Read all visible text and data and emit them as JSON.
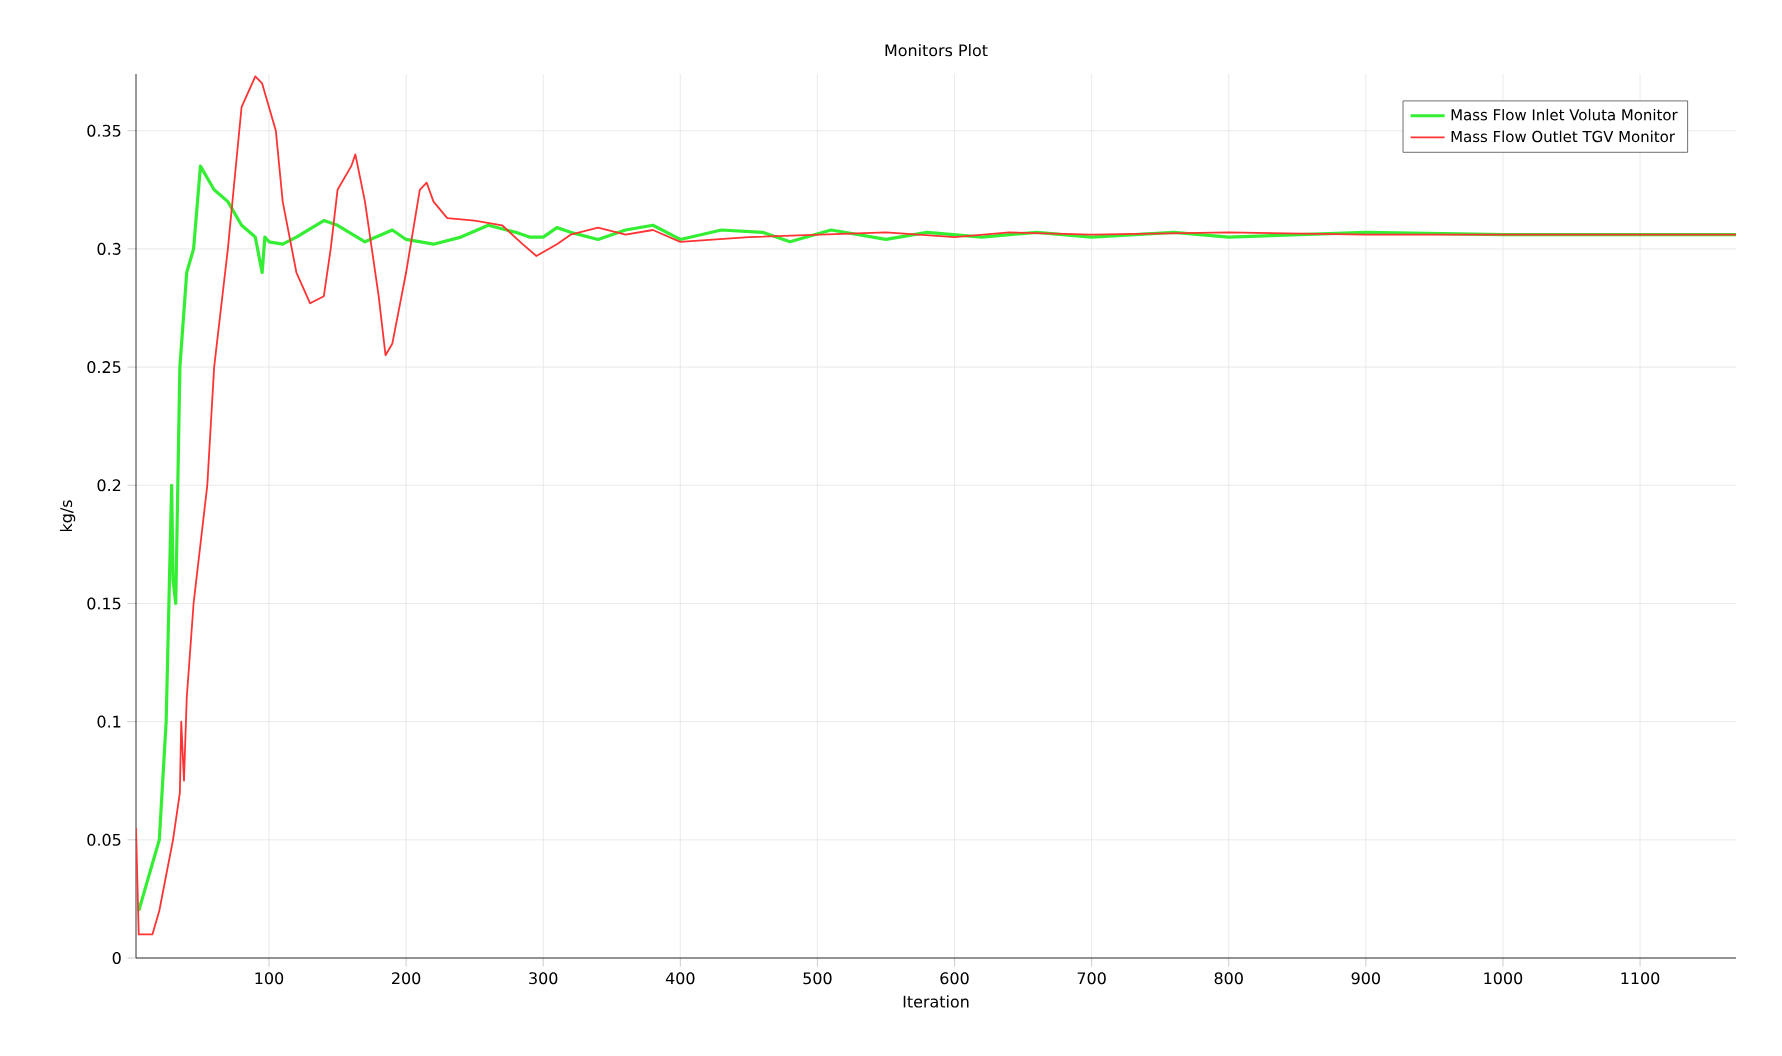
{
  "chart_data": {
    "type": "line",
    "title": "Monitors Plot",
    "xlabel": "Iteration",
    "ylabel": "kg/s",
    "xlim": [
      3,
      1170
    ],
    "ylim": [
      0,
      0.374
    ],
    "xticks": [
      100,
      200,
      300,
      400,
      500,
      600,
      700,
      800,
      900,
      1000,
      1100
    ],
    "yticks": [
      0,
      0.05,
      0.1,
      0.15,
      0.2,
      0.25,
      0.3,
      0.35
    ],
    "grid": true,
    "legend": "top right",
    "marker": "none",
    "line_style": "solid",
    "series": [
      {
        "name": "Mass Flow Inlet Voluta Monitor",
        "color": "#33ee33",
        "x": [
          5,
          10,
          15,
          20,
          25,
          29,
          30,
          32,
          35,
          40,
          45,
          50,
          55,
          60,
          70,
          80,
          90,
          95,
          97,
          100,
          110,
          120,
          140,
          150,
          170,
          190,
          200,
          220,
          240,
          260,
          280,
          290,
          300,
          310,
          320,
          340,
          360,
          380,
          400,
          430,
          460,
          480,
          510,
          550,
          580,
          620,
          660,
          700,
          760,
          800,
          900,
          1000,
          1170
        ],
        "values": [
          0.02,
          0.03,
          0.04,
          0.05,
          0.1,
          0.2,
          0.16,
          0.15,
          0.25,
          0.29,
          0.3,
          0.335,
          0.33,
          0.325,
          0.32,
          0.31,
          0.305,
          0.29,
          0.305,
          0.303,
          0.302,
          0.305,
          0.312,
          0.31,
          0.303,
          0.308,
          0.304,
          0.302,
          0.305,
          0.31,
          0.307,
          0.305,
          0.305,
          0.309,
          0.307,
          0.304,
          0.308,
          0.31,
          0.304,
          0.308,
          0.307,
          0.303,
          0.308,
          0.304,
          0.307,
          0.305,
          0.307,
          0.305,
          0.307,
          0.305,
          0.307,
          0.306,
          0.306
        ]
      },
      {
        "name": "Mass Flow Outlet TGV Monitor",
        "color": "#ff3333",
        "x": [
          3,
          5,
          15,
          20,
          25,
          30,
          35,
          36,
          38,
          40,
          45,
          55,
          60,
          70,
          75,
          80,
          90,
          95,
          105,
          110,
          120,
          130,
          140,
          145,
          150,
          160,
          163,
          170,
          180,
          185,
          190,
          200,
          210,
          215,
          220,
          230,
          250,
          270,
          285,
          295,
          310,
          320,
          340,
          360,
          380,
          400,
          450,
          500,
          550,
          600,
          640,
          700,
          800,
          900,
          1170
        ],
        "values": [
          0.055,
          0.01,
          0.01,
          0.02,
          0.035,
          0.05,
          0.07,
          0.1,
          0.075,
          0.11,
          0.15,
          0.2,
          0.25,
          0.3,
          0.33,
          0.36,
          0.373,
          0.37,
          0.35,
          0.32,
          0.29,
          0.277,
          0.28,
          0.3,
          0.325,
          0.335,
          0.34,
          0.32,
          0.28,
          0.255,
          0.26,
          0.29,
          0.325,
          0.328,
          0.32,
          0.313,
          0.312,
          0.31,
          0.302,
          0.297,
          0.302,
          0.306,
          0.309,
          0.306,
          0.308,
          0.303,
          0.305,
          0.306,
          0.307,
          0.305,
          0.307,
          0.306,
          0.307,
          0.306,
          0.306
        ]
      }
    ]
  }
}
